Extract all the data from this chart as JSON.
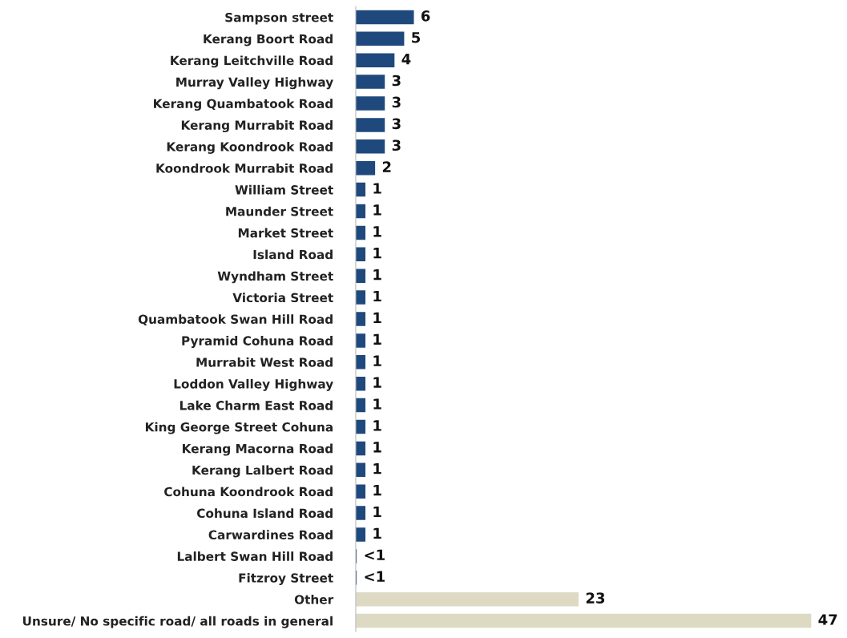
{
  "chart_data": {
    "type": "bar",
    "orientation": "horizontal",
    "categories": [
      "Sampson street",
      "Kerang Boort Road",
      "Kerang Leitchville Road",
      "Murray Valley Highway",
      "Kerang Quambatook Road",
      "Kerang Murrabit Road",
      "Kerang Koondrook Road",
      "Koondrook Murrabit Road",
      "William Street",
      "Maunder Street",
      "Market Street",
      "Island Road",
      "Wyndham Street",
      "Victoria Street",
      "Quambatook Swan Hill Road",
      "Pyramid Cohuna Road",
      "Murrabit West Road",
      "Loddon Valley Highway",
      "Lake Charm East Road",
      "King George Street Cohuna",
      "Kerang Macorna Road",
      "Kerang Lalbert Road",
      "Cohuna Koondrook Road",
      "Cohuna Island Road",
      "Carwardines Road",
      "Lalbert Swan Hill Road",
      "Fitzroy Street",
      "Other",
      "Unsure/ No specific road/ all roads in general"
    ],
    "values": [
      6,
      5,
      4,
      3,
      3,
      3,
      3,
      2,
      1,
      1,
      1,
      1,
      1,
      1,
      1,
      1,
      1,
      1,
      1,
      1,
      1,
      1,
      1,
      1,
      1,
      0.1,
      0.1,
      23,
      47
    ],
    "value_labels": [
      "6",
      "5",
      "4",
      "3",
      "3",
      "3",
      "3",
      "2",
      "1",
      "1",
      "1",
      "1",
      "1",
      "1",
      "1",
      "1",
      "1",
      "1",
      "1",
      "1",
      "1",
      "1",
      "1",
      "1",
      "1",
      "<1",
      "<1",
      "23",
      "47"
    ],
    "colors": [
      "#1f497d",
      "#1f497d",
      "#1f497d",
      "#1f497d",
      "#1f497d",
      "#1f497d",
      "#1f497d",
      "#1f497d",
      "#1f497d",
      "#1f497d",
      "#1f497d",
      "#1f497d",
      "#1f497d",
      "#1f497d",
      "#1f497d",
      "#1f497d",
      "#1f497d",
      "#1f497d",
      "#1f497d",
      "#1f497d",
      "#1f497d",
      "#1f497d",
      "#1f497d",
      "#1f497d",
      "#1f497d",
      "#1f497d",
      "#1f497d",
      "#ddd9c3",
      "#ddd9c3"
    ],
    "grid": false,
    "legend": false
  }
}
